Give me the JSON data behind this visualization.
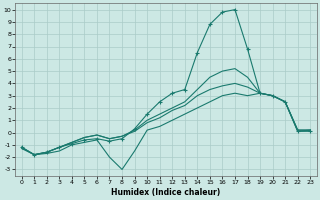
{
  "xlabel": "Humidex (Indice chaleur)",
  "bg_color": "#cce8e4",
  "grid_color": "#aaccc8",
  "line_color": "#1a7a6e",
  "xlim": [
    -0.5,
    23.5
  ],
  "ylim": [
    -3.5,
    10.5
  ],
  "xticks": [
    0,
    1,
    2,
    3,
    4,
    5,
    6,
    7,
    8,
    9,
    10,
    11,
    12,
    13,
    14,
    15,
    16,
    17,
    18,
    19,
    20,
    21,
    22,
    23
  ],
  "yticks": [
    -3,
    -2,
    -1,
    0,
    1,
    2,
    3,
    4,
    5,
    6,
    7,
    8,
    9,
    10
  ],
  "series_main_x": [
    0,
    1,
    2,
    3,
    4,
    5,
    6,
    7,
    8,
    9,
    10,
    11,
    12,
    13,
    14,
    15,
    16,
    17,
    18,
    19,
    20,
    21,
    22,
    23
  ],
  "series_main_y": [
    -1.2,
    -1.8,
    -1.6,
    -1.2,
    -0.9,
    -0.6,
    -0.5,
    -0.7,
    -0.5,
    0.3,
    1.5,
    2.5,
    3.2,
    3.5,
    6.5,
    8.8,
    9.8,
    10.0,
    6.8,
    3.2,
    3.0,
    2.5,
    0.1,
    0.1
  ],
  "series_dip_x": [
    0,
    1,
    2,
    3,
    4,
    5,
    6,
    7,
    8,
    9,
    10,
    11,
    12,
    13,
    14,
    15,
    16,
    17,
    18,
    19,
    20,
    21,
    22,
    23
  ],
  "series_dip_y": [
    -1.3,
    -1.8,
    -1.7,
    -1.5,
    -1.0,
    -0.8,
    -0.6,
    -2.0,
    -3.0,
    -1.5,
    0.2,
    0.5,
    1.0,
    1.5,
    2.0,
    2.5,
    3.0,
    3.2,
    3.0,
    3.2,
    3.0,
    2.5,
    0.1,
    0.2
  ],
  "series_flat1_x": [
    0,
    1,
    2,
    3,
    4,
    5,
    6,
    7,
    8,
    9,
    10,
    11,
    12,
    13,
    14,
    15,
    16,
    17,
    18,
    19,
    20,
    21,
    22,
    23
  ],
  "series_flat1_y": [
    -1.2,
    -1.8,
    -1.6,
    -1.2,
    -0.8,
    -0.4,
    -0.2,
    -0.5,
    -0.3,
    0.1,
    0.8,
    1.2,
    1.8,
    2.2,
    3.0,
    3.5,
    3.8,
    4.0,
    3.7,
    3.2,
    3.0,
    2.5,
    0.2,
    0.2
  ],
  "series_flat2_x": [
    0,
    1,
    2,
    3,
    4,
    5,
    6,
    7,
    8,
    9,
    10,
    11,
    12,
    13,
    14,
    15,
    16,
    17,
    18,
    19,
    20,
    21,
    22,
    23
  ],
  "series_flat2_y": [
    -1.2,
    -1.8,
    -1.6,
    -1.2,
    -0.8,
    -0.4,
    -0.2,
    -0.5,
    -0.3,
    0.2,
    1.0,
    1.5,
    2.0,
    2.5,
    3.5,
    4.5,
    5.0,
    5.2,
    4.5,
    3.2,
    3.0,
    2.5,
    0.2,
    0.2
  ]
}
